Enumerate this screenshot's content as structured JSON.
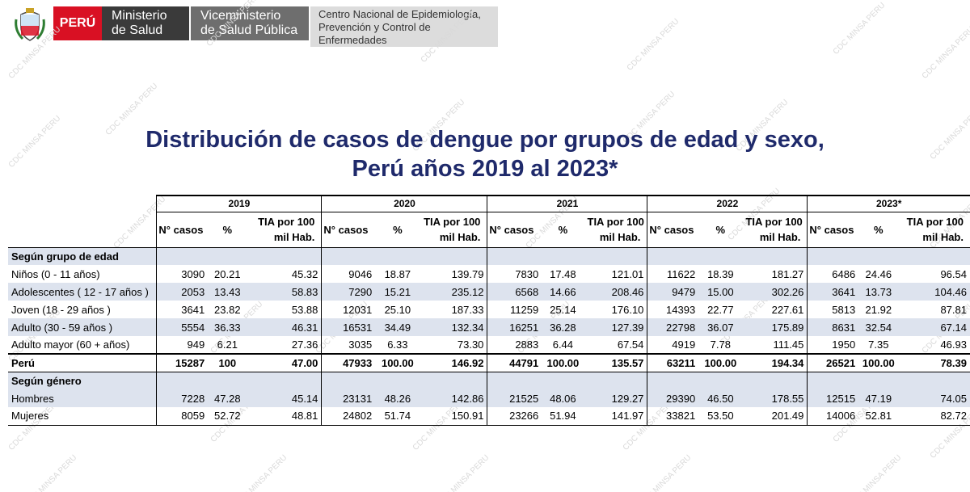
{
  "header": {
    "peru": "PERÚ",
    "ministry_line1": "Ministerio",
    "ministry_line2": "de Salud",
    "vice_line1": "Viceministerio",
    "vice_line2": "de Salud Pública",
    "cdc_line1": "Centro Nacional de Epidemiología,",
    "cdc_line2": "Prevención y Control de",
    "cdc_line3": "Enfermedades"
  },
  "watermark": "CDC MINSA PERU",
  "title_line1": "Distribución de casos de dengue por grupos de edad y sexo,",
  "title_line2": "Perú años 2019 al 2023*",
  "table": {
    "years": [
      "2019",
      "2020",
      "2021",
      "2022",
      "2023*"
    ],
    "col_casos": "N° casos",
    "col_pct": "%",
    "col_tia_line1": "TIA por 100",
    "col_tia_line2": "mil Hab.",
    "section_age": "Según grupo de edad",
    "section_gender": "Según género",
    "age_rows": [
      {
        "label": "Niños (0 - 11 años)",
        "values": [
          "3090",
          "20.21",
          "45.32",
          "9046",
          "18.87",
          "139.79",
          "7830",
          "17.48",
          "121.01",
          "11622",
          "18.39",
          "181.27",
          "6486",
          "24.46",
          "96.54"
        ]
      },
      {
        "label": "Adolescentes ( 12 - 17 años )",
        "values": [
          "2053",
          "13.43",
          "58.83",
          "7290",
          "15.21",
          "235.12",
          "6568",
          "14.66",
          "208.46",
          "9479",
          "15.00",
          "302.26",
          "3641",
          "13.73",
          "104.46"
        ]
      },
      {
        "label": "Joven (18 - 29 años )",
        "values": [
          "3641",
          "23.82",
          "53.88",
          "12031",
          "25.10",
          "187.33",
          "11259",
          "25.14",
          "176.10",
          "14393",
          "22.77",
          "227.61",
          "5813",
          "21.92",
          "87.81"
        ]
      },
      {
        "label": "Adulto (30 - 59 años )",
        "values": [
          "5554",
          "36.33",
          "46.31",
          "16531",
          "34.49",
          "132.34",
          "16251",
          "36.28",
          "127.39",
          "22798",
          "36.07",
          "175.89",
          "8631",
          "32.54",
          "67.14"
        ]
      },
      {
        "label": "Adulto mayor (60 + años)",
        "values": [
          "949",
          "6.21",
          "27.36",
          "3035",
          "6.33",
          "73.30",
          "2883",
          "6.44",
          "67.54",
          "4919",
          "7.78",
          "111.45",
          "1950",
          "7.35",
          "46.93"
        ]
      }
    ],
    "total_row": {
      "label": "Perú",
      "values": [
        "15287",
        "100",
        "47.00",
        "47933",
        "100.00",
        "146.92",
        "44791",
        "100.00",
        "135.57",
        "63211",
        "100.00",
        "194.34",
        "26521",
        "100.00",
        "78.39"
      ]
    },
    "gender_rows": [
      {
        "label": "Hombres",
        "values": [
          "7228",
          "47.28",
          "45.14",
          "23131",
          "48.26",
          "142.86",
          "21525",
          "48.06",
          "129.27",
          "29390",
          "46.50",
          "178.55",
          "12515",
          "47.19",
          "74.05"
        ]
      },
      {
        "label": "Mujeres",
        "values": [
          "8059",
          "52.72",
          "48.81",
          "24802",
          "51.74",
          "150.91",
          "23266",
          "51.94",
          "141.97",
          "33821",
          "53.50",
          "201.49",
          "14006",
          "52.81",
          "82.72"
        ]
      }
    ]
  }
}
